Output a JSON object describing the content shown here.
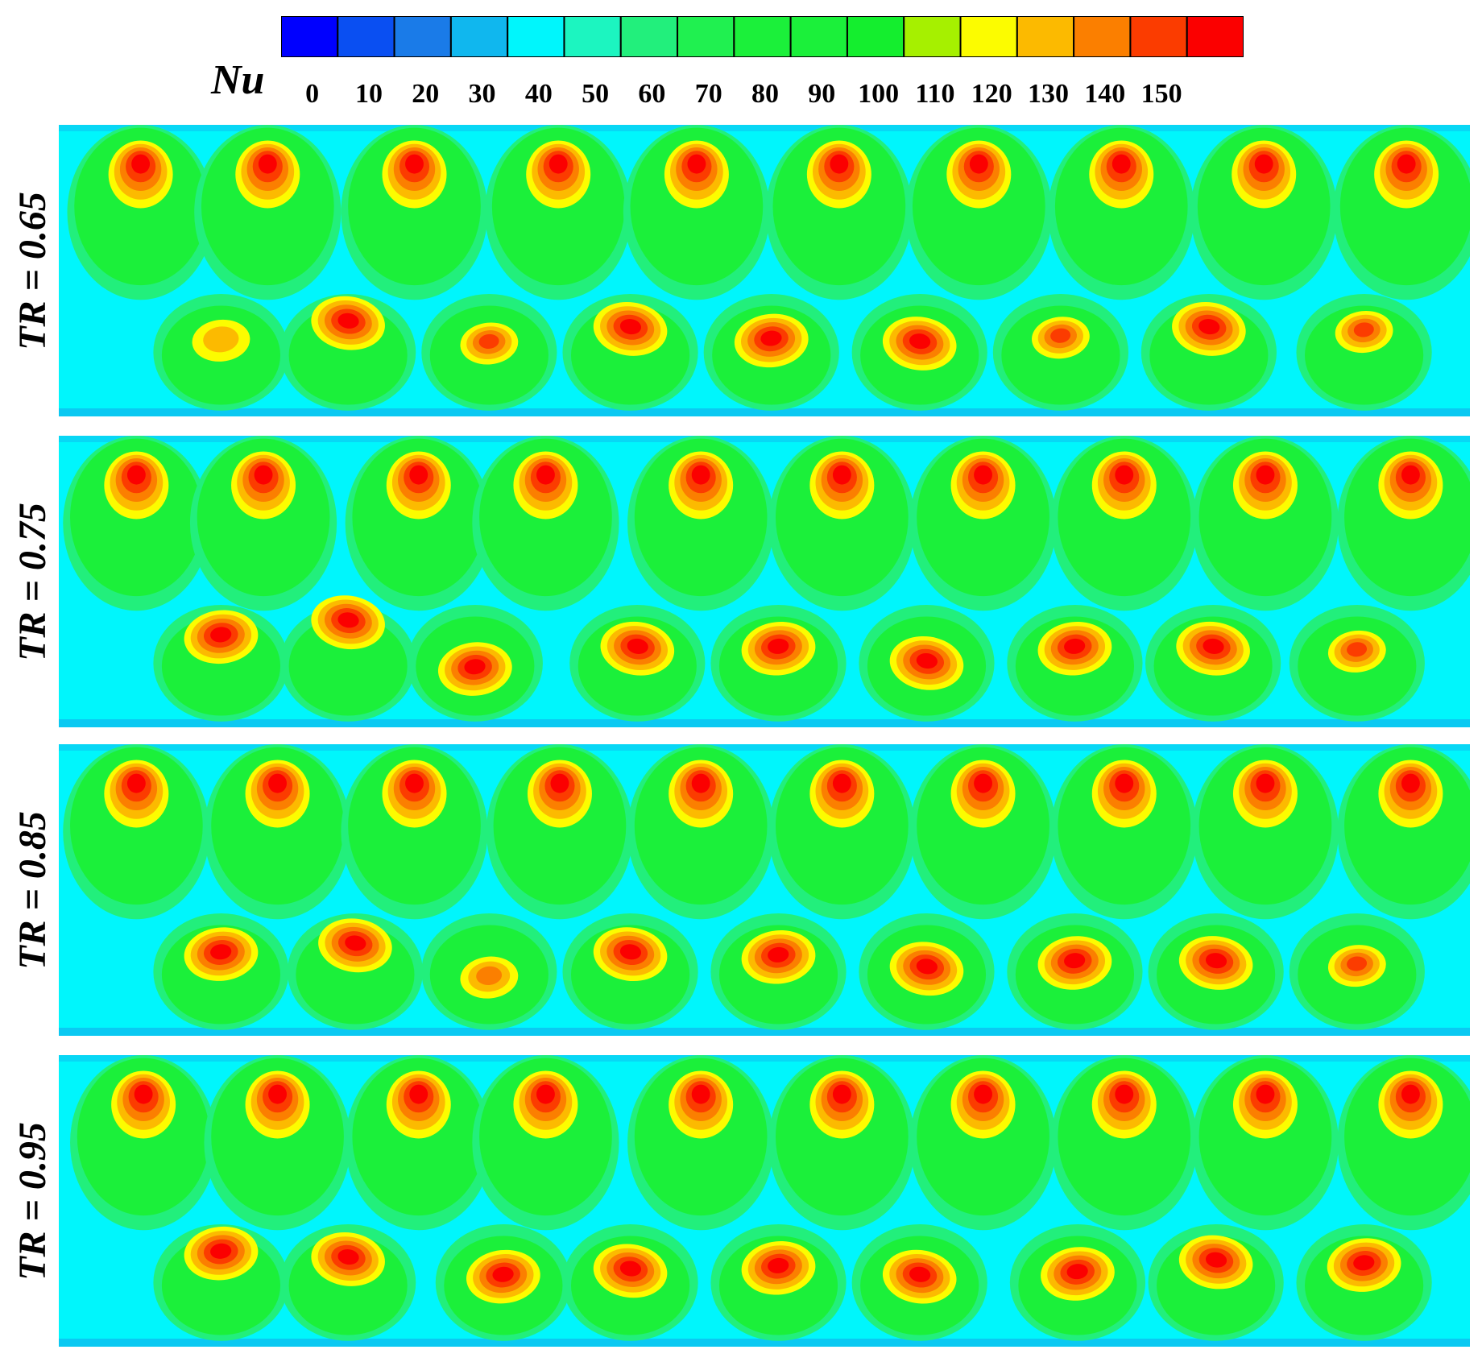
{
  "chart_data": {
    "type": "heatmap",
    "colorbar": {
      "label": "Nu",
      "ticks": [
        "0",
        "10",
        "20",
        "30",
        "40",
        "50",
        "60",
        "70",
        "80",
        "90",
        "100",
        "110",
        "120",
        "130",
        "140",
        "150"
      ],
      "colors": [
        "#0000ff",
        "#0a4ff2",
        "#1a7be8",
        "#10b7ee",
        "#00f6fc",
        "#1cf5c0",
        "#22ef7c",
        "#20f050",
        "#1bf03a",
        "#1bf03a",
        "#14ee2e",
        "#a6f000",
        "#fcfc00",
        "#fcba00",
        "#fb7f00",
        "#fb3c00",
        "#fb0000"
      ]
    },
    "panels": [
      {
        "label": "TR = 0.65",
        "top_hot_spots": [
          {
            "x": 0.058,
            "y": 0.12,
            "peak": 150
          },
          {
            "x": 0.148,
            "y": 0.12,
            "peak": 150
          },
          {
            "x": 0.252,
            "y": 0.12,
            "peak": 150
          },
          {
            "x": 0.354,
            "y": 0.12,
            "peak": 150
          },
          {
            "x": 0.452,
            "y": 0.12,
            "peak": 150
          },
          {
            "x": 0.553,
            "y": 0.12,
            "peak": 150
          },
          {
            "x": 0.652,
            "y": 0.12,
            "peak": 150
          },
          {
            "x": 0.753,
            "y": 0.12,
            "peak": 150
          },
          {
            "x": 0.854,
            "y": 0.12,
            "peak": 150
          },
          {
            "x": 0.955,
            "y": 0.12,
            "peak": 150
          }
        ],
        "bottom_hot_spots": [
          {
            "x": 0.115,
            "y": 0.74,
            "peak": 120
          },
          {
            "x": 0.205,
            "y": 0.68,
            "peak": 150
          },
          {
            "x": 0.305,
            "y": 0.75,
            "peak": 140
          },
          {
            "x": 0.405,
            "y": 0.7,
            "peak": 150
          },
          {
            "x": 0.505,
            "y": 0.74,
            "peak": 150
          },
          {
            "x": 0.61,
            "y": 0.75,
            "peak": 150
          },
          {
            "x": 0.71,
            "y": 0.73,
            "peak": 140
          },
          {
            "x": 0.815,
            "y": 0.7,
            "peak": 150
          },
          {
            "x": 0.925,
            "y": 0.71,
            "peak": 140
          }
        ]
      },
      {
        "label": "TR = 0.75",
        "top_hot_spots": [
          {
            "x": 0.055,
            "y": 0.12,
            "peak": 150
          },
          {
            "x": 0.145,
            "y": 0.12,
            "peak": 150
          },
          {
            "x": 0.255,
            "y": 0.12,
            "peak": 150
          },
          {
            "x": 0.345,
            "y": 0.12,
            "peak": 150
          },
          {
            "x": 0.455,
            "y": 0.12,
            "peak": 150
          },
          {
            "x": 0.555,
            "y": 0.12,
            "peak": 150
          },
          {
            "x": 0.655,
            "y": 0.12,
            "peak": 150
          },
          {
            "x": 0.755,
            "y": 0.12,
            "peak": 150
          },
          {
            "x": 0.855,
            "y": 0.12,
            "peak": 150
          },
          {
            "x": 0.958,
            "y": 0.12,
            "peak": 150
          }
        ],
        "bottom_hot_spots": [
          {
            "x": 0.115,
            "y": 0.69,
            "peak": 150
          },
          {
            "x": 0.205,
            "y": 0.64,
            "peak": 150
          },
          {
            "x": 0.295,
            "y": 0.8,
            "peak": 150
          },
          {
            "x": 0.41,
            "y": 0.73,
            "peak": 150
          },
          {
            "x": 0.51,
            "y": 0.73,
            "peak": 150
          },
          {
            "x": 0.615,
            "y": 0.78,
            "peak": 150
          },
          {
            "x": 0.72,
            "y": 0.73,
            "peak": 150
          },
          {
            "x": 0.818,
            "y": 0.73,
            "peak": 150
          },
          {
            "x": 0.92,
            "y": 0.74,
            "peak": 140
          }
        ]
      },
      {
        "label": "TR = 0.85",
        "top_hot_spots": [
          {
            "x": 0.055,
            "y": 0.12,
            "peak": 150
          },
          {
            "x": 0.155,
            "y": 0.12,
            "peak": 150
          },
          {
            "x": 0.252,
            "y": 0.12,
            "peak": 150
          },
          {
            "x": 0.355,
            "y": 0.12,
            "peak": 150
          },
          {
            "x": 0.455,
            "y": 0.12,
            "peak": 150
          },
          {
            "x": 0.555,
            "y": 0.12,
            "peak": 150
          },
          {
            "x": 0.655,
            "y": 0.12,
            "peak": 150
          },
          {
            "x": 0.755,
            "y": 0.12,
            "peak": 150
          },
          {
            "x": 0.855,
            "y": 0.12,
            "peak": 150
          },
          {
            "x": 0.958,
            "y": 0.12,
            "peak": 150
          }
        ],
        "bottom_hot_spots": [
          {
            "x": 0.115,
            "y": 0.72,
            "peak": 150
          },
          {
            "x": 0.21,
            "y": 0.69,
            "peak": 150
          },
          {
            "x": 0.305,
            "y": 0.8,
            "peak": 130
          },
          {
            "x": 0.405,
            "y": 0.72,
            "peak": 150
          },
          {
            "x": 0.51,
            "y": 0.73,
            "peak": 150
          },
          {
            "x": 0.615,
            "y": 0.77,
            "peak": 150
          },
          {
            "x": 0.72,
            "y": 0.75,
            "peak": 150
          },
          {
            "x": 0.82,
            "y": 0.75,
            "peak": 150
          },
          {
            "x": 0.92,
            "y": 0.76,
            "peak": 140
          }
        ]
      },
      {
        "label": "TR = 0.95",
        "top_hot_spots": [
          {
            "x": 0.06,
            "y": 0.12,
            "peak": 150
          },
          {
            "x": 0.155,
            "y": 0.12,
            "peak": 150
          },
          {
            "x": 0.255,
            "y": 0.12,
            "peak": 150
          },
          {
            "x": 0.345,
            "y": 0.12,
            "peak": 150
          },
          {
            "x": 0.455,
            "y": 0.12,
            "peak": 150
          },
          {
            "x": 0.555,
            "y": 0.12,
            "peak": 150
          },
          {
            "x": 0.655,
            "y": 0.12,
            "peak": 150
          },
          {
            "x": 0.755,
            "y": 0.12,
            "peak": 150
          },
          {
            "x": 0.855,
            "y": 0.12,
            "peak": 150
          },
          {
            "x": 0.958,
            "y": 0.12,
            "peak": 150
          }
        ],
        "bottom_hot_spots": [
          {
            "x": 0.115,
            "y": 0.68,
            "peak": 150
          },
          {
            "x": 0.205,
            "y": 0.7,
            "peak": 150
          },
          {
            "x": 0.315,
            "y": 0.76,
            "peak": 150
          },
          {
            "x": 0.405,
            "y": 0.74,
            "peak": 150
          },
          {
            "x": 0.51,
            "y": 0.73,
            "peak": 150
          },
          {
            "x": 0.61,
            "y": 0.76,
            "peak": 150
          },
          {
            "x": 0.722,
            "y": 0.75,
            "peak": 150
          },
          {
            "x": 0.82,
            "y": 0.71,
            "peak": 150
          },
          {
            "x": 0.925,
            "y": 0.72,
            "peak": 150
          }
        ]
      }
    ]
  }
}
